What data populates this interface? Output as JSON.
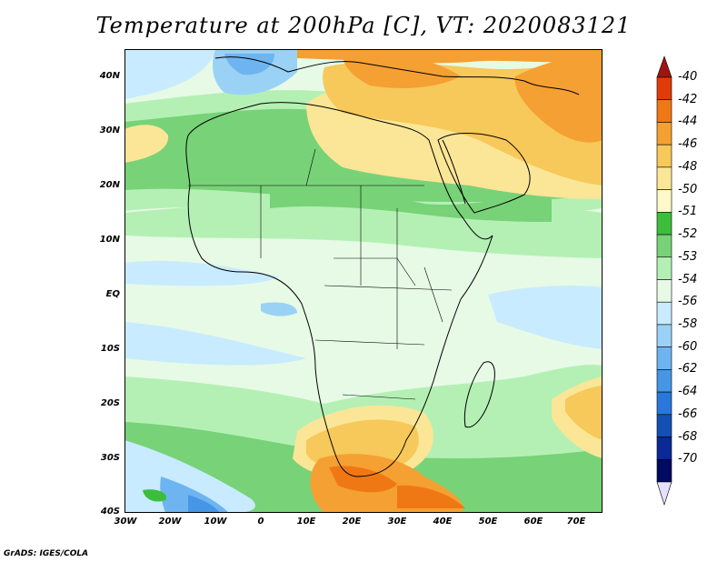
{
  "title": "Temperature at 200hPa [C], VT: 2020083121",
  "credit": "GrADS: IGES/COLA",
  "lat_labels": [
    "40N",
    "30N",
    "20N",
    "10N",
    "EQ",
    "10S",
    "20S",
    "30S",
    "40S"
  ],
  "lon_labels": [
    "30W",
    "20W",
    "10W",
    "0",
    "10E",
    "20E",
    "30E",
    "40E",
    "50E",
    "60E",
    "70E"
  ],
  "colorbar": {
    "labels": [
      "-40",
      "-42",
      "-44",
      "-46",
      "-48",
      "-50",
      "-51",
      "-52",
      "-53",
      "-54",
      "-56",
      "-58",
      "-60",
      "-62",
      "-64",
      "-66",
      "-68",
      "-70"
    ],
    "colors": [
      "#a01414",
      "#e03c0a",
      "#f07814",
      "#f5a032",
      "#f7c85a",
      "#fae696",
      "#fff8c8",
      "#3cbe3c",
      "#78d278",
      "#b4f0b4",
      "#e6fae6",
      "#c8ebff",
      "#9ad2f5",
      "#6eb4f0",
      "#4696e6",
      "#2878dc",
      "#1450b4",
      "#0a2896",
      "#000a60",
      "#e6e0ff"
    ]
  },
  "legend_colors_note": "",
  "palette": {
    "orange_dark": "#f07814",
    "orange": "#f5a032",
    "yellow_orange": "#f7c85a",
    "yellow": "#fae696",
    "green_dark": "#3cbe3c",
    "green": "#78d278",
    "green_light": "#b4f0b4",
    "pale": "#e6fae6",
    "blue_pale": "#c8ebff",
    "blue": "#6eb4f0",
    "blue_mid": "#4696e6"
  }
}
